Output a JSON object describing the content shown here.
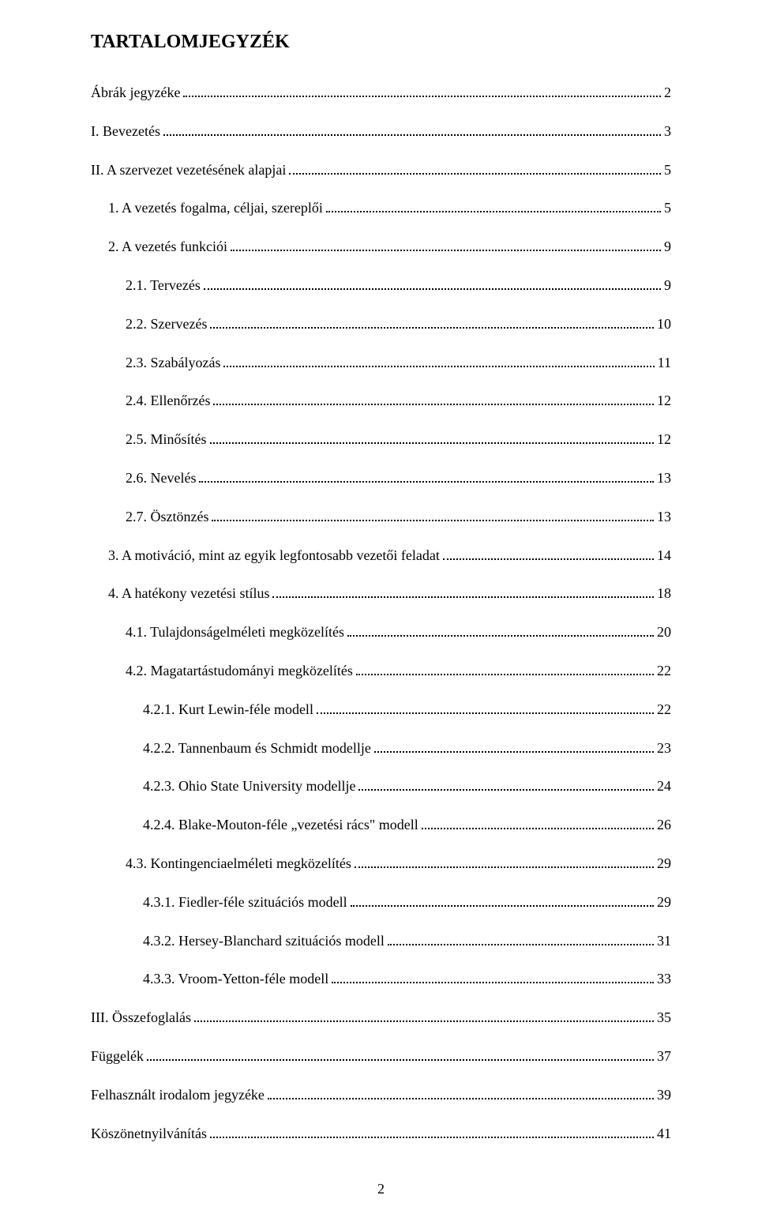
{
  "title": "TARTALOMJEGYZÉK",
  "toc": [
    {
      "level": 0,
      "label": "Ábrák jegyzéke",
      "page": "2"
    },
    {
      "level": 0,
      "label": "I. Bevezetés",
      "page": "3"
    },
    {
      "level": 0,
      "label": "II. A szervezet vezetésének alapjai",
      "page": "5"
    },
    {
      "level": 1,
      "label": "1. A vezetés fogalma, céljai, szereplői",
      "page": "5"
    },
    {
      "level": 1,
      "label": "2. A vezetés funkciói",
      "page": "9"
    },
    {
      "level": 2,
      "label": "2.1. Tervezés",
      "page": "9"
    },
    {
      "level": 2,
      "label": "2.2. Szervezés",
      "page": "10"
    },
    {
      "level": 2,
      "label": "2.3. Szabályozás",
      "page": "11"
    },
    {
      "level": 2,
      "label": "2.4. Ellenőrzés",
      "page": "12"
    },
    {
      "level": 2,
      "label": "2.5. Minősítés",
      "page": "12"
    },
    {
      "level": 2,
      "label": "2.6. Nevelés",
      "page": "13"
    },
    {
      "level": 2,
      "label": "2.7. Ösztönzés",
      "page": "13"
    },
    {
      "level": 1,
      "label": "3. A motiváció, mint az egyik legfontosabb vezetői feladat",
      "page": "14"
    },
    {
      "level": 1,
      "label": "4. A hatékony vezetési stílus",
      "page": "18"
    },
    {
      "level": 2,
      "label": "4.1. Tulajdonságelméleti megközelítés",
      "page": "20"
    },
    {
      "level": 2,
      "label": "4.2. Magatartástudományi megközelítés",
      "page": "22"
    },
    {
      "level": 3,
      "label": "4.2.1. Kurt Lewin-féle modell",
      "page": "22"
    },
    {
      "level": 3,
      "label": "4.2.2. Tannenbaum és Schmidt modellje",
      "page": "23"
    },
    {
      "level": 3,
      "label": "4.2.3. Ohio State University modellje",
      "page": "24"
    },
    {
      "level": 3,
      "label": "4.2.4. Blake-Mouton-féle „vezetési rács\" modell",
      "page": "26"
    },
    {
      "level": 2,
      "label": "4.3. Kontingenciaelméleti megközelítés",
      "page": "29"
    },
    {
      "level": 3,
      "label": "4.3.1. Fiedler-féle szituációs modell",
      "page": "29"
    },
    {
      "level": 3,
      "label": "4.3.2. Hersey-Blanchard szituációs modell",
      "page": "31"
    },
    {
      "level": 3,
      "label": "4.3.3. Vroom-Yetton-féle modell",
      "page": "33"
    },
    {
      "level": 0,
      "label": "III. Összefoglalás",
      "page": "35"
    },
    {
      "level": 0,
      "label": "Függelék",
      "page": "37"
    },
    {
      "level": 0,
      "label": "Felhasznált irodalom jegyzéke",
      "page": "39"
    },
    {
      "level": 0,
      "label": "Köszönetnyilvánítás",
      "page": "41"
    }
  ],
  "pageNumber": "2",
  "colors": {
    "background": "#ffffff",
    "text": "#000000",
    "dots": "#000000"
  },
  "typography": {
    "title_fontsize": 24,
    "title_weight": "bold",
    "body_fontsize": 18,
    "font_family": "Times New Roman"
  }
}
